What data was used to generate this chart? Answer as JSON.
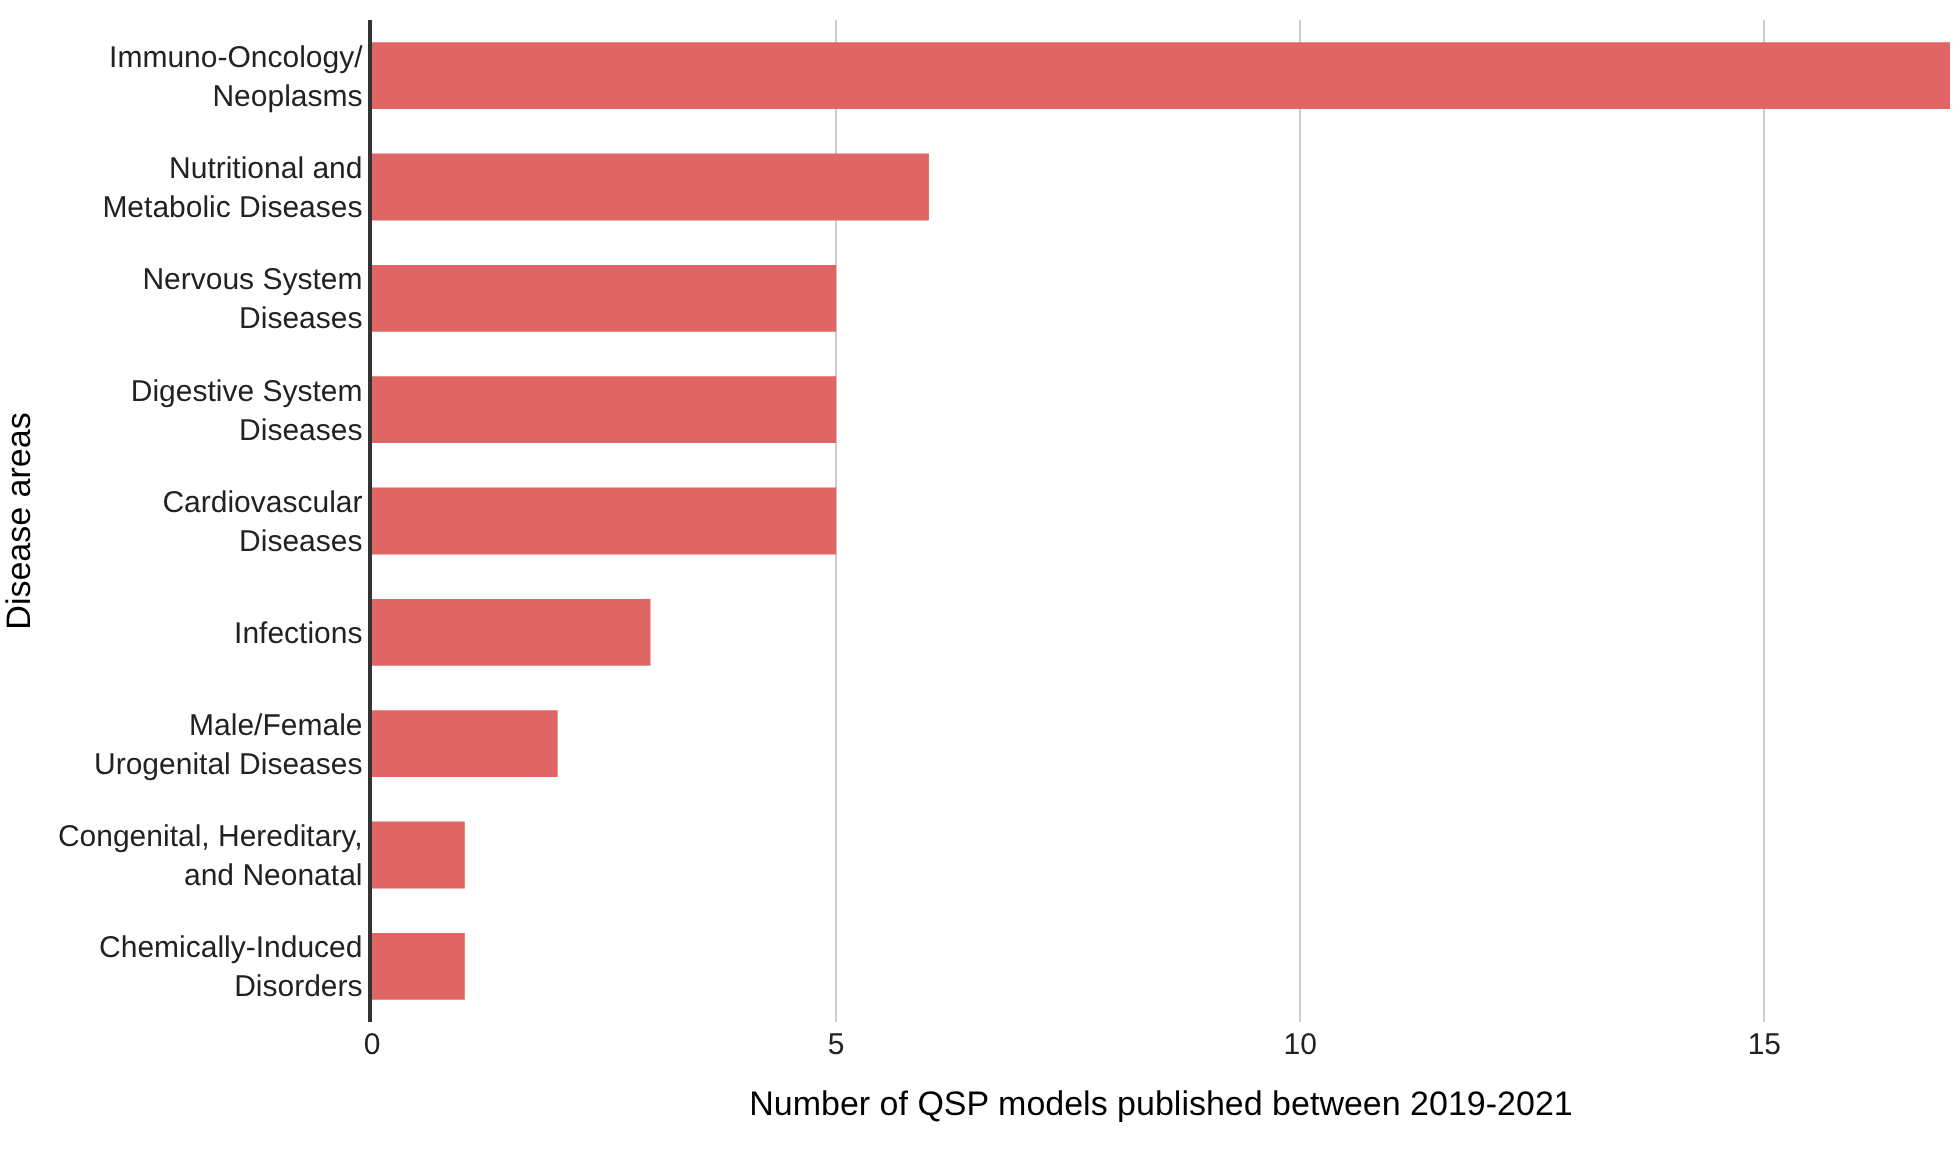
{
  "chart_data": {
    "type": "bar",
    "orientation": "horizontal",
    "categories": [
      "Immuno-Oncology/\nNeoplasms",
      "Nutritional and\nMetabolic Diseases",
      "Nervous System\nDiseases",
      "Digestive System\nDiseases",
      "Cardiovascular\nDiseases",
      "Infections",
      "Male/Female\nUrogenital Diseases",
      "Congenital, Hereditary,\nand Neonatal",
      "Chemically-Induced\nDisorders"
    ],
    "values": [
      17,
      6,
      5,
      5,
      5,
      3,
      2,
      1,
      1
    ],
    "color": "#e06666",
    "xlim": [
      0,
      17
    ],
    "xticks": [
      0,
      5,
      10,
      15
    ],
    "xlabel": "Number of QSP models published between 2019-2021",
    "ylabel": "Disease areas",
    "grid": "x",
    "legend": false
  }
}
